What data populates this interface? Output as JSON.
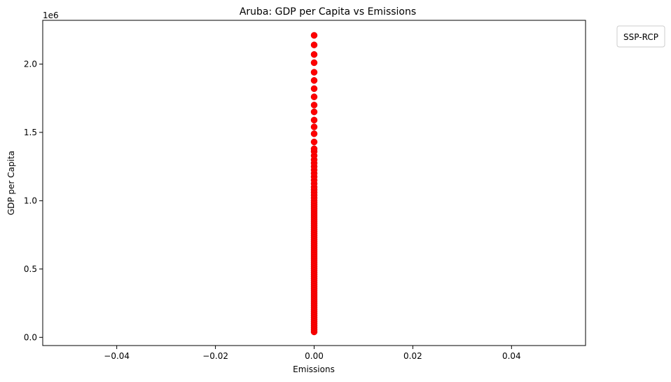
{
  "chart_data": {
    "type": "scatter",
    "title": "Aruba: GDP per Capita vs Emissions",
    "xlabel": "Emissions",
    "ylabel": "GDP per Capita",
    "y_offset_label": "1e6",
    "xlim": [
      -0.055,
      0.055
    ],
    "ylim": [
      -60000,
      2320000
    ],
    "x_ticks": [
      -0.04,
      -0.02,
      0.0,
      0.02,
      0.04
    ],
    "x_tick_labels": [
      "−0.04",
      "−0.02",
      "0.00",
      "0.02",
      "0.04"
    ],
    "y_ticks": [
      0,
      500000,
      1000000,
      1500000,
      2000000
    ],
    "y_tick_labels": [
      "0.0",
      "0.5",
      "1.0",
      "1.5",
      "2.0"
    ],
    "grid": false,
    "legend": {
      "title": "SSP-RCP",
      "placement": "outside-top-right",
      "entries": []
    },
    "series": [
      {
        "color": "#ff0000",
        "points": [
          [
            0,
            40000
          ],
          [
            0,
            55000
          ],
          [
            0,
            70000
          ],
          [
            0,
            85000
          ],
          [
            0,
            100000
          ],
          [
            0,
            115000
          ],
          [
            0,
            130000
          ],
          [
            0,
            145000
          ],
          [
            0,
            160000
          ],
          [
            0,
            175000
          ],
          [
            0,
            190000
          ],
          [
            0,
            205000
          ],
          [
            0,
            220000
          ],
          [
            0,
            235000
          ],
          [
            0,
            250000
          ],
          [
            0,
            265000
          ],
          [
            0,
            280000
          ],
          [
            0,
            295000
          ],
          [
            0,
            310000
          ],
          [
            0,
            325000
          ],
          [
            0,
            340000
          ],
          [
            0,
            355000
          ],
          [
            0,
            370000
          ],
          [
            0,
            385000
          ],
          [
            0,
            400000
          ],
          [
            0,
            415000
          ],
          [
            0,
            430000
          ],
          [
            0,
            445000
          ],
          [
            0,
            460000
          ],
          [
            0,
            475000
          ],
          [
            0,
            490000
          ],
          [
            0,
            505000
          ],
          [
            0,
            520000
          ],
          [
            0,
            535000
          ],
          [
            0,
            550000
          ],
          [
            0,
            565000
          ],
          [
            0,
            580000
          ],
          [
            0,
            595000
          ],
          [
            0,
            610000
          ],
          [
            0,
            625000
          ],
          [
            0,
            640000
          ],
          [
            0,
            655000
          ],
          [
            0,
            670000
          ],
          [
            0,
            685000
          ],
          [
            0,
            700000
          ],
          [
            0,
            715000
          ],
          [
            0,
            730000
          ],
          [
            0,
            745000
          ],
          [
            0,
            760000
          ],
          [
            0,
            775000
          ],
          [
            0,
            790000
          ],
          [
            0,
            805000
          ],
          [
            0,
            820000
          ],
          [
            0,
            835000
          ],
          [
            0,
            850000
          ],
          [
            0,
            865000
          ],
          [
            0,
            880000
          ],
          [
            0,
            895000
          ],
          [
            0,
            910000
          ],
          [
            0,
            925000
          ],
          [
            0,
            940000
          ],
          [
            0,
            955000
          ],
          [
            0,
            970000
          ],
          [
            0,
            985000
          ],
          [
            0,
            1000000
          ],
          [
            0,
            1020000
          ],
          [
            0,
            1040000
          ],
          [
            0,
            1060000
          ],
          [
            0,
            1080000
          ],
          [
            0,
            1100000
          ],
          [
            0,
            1125000
          ],
          [
            0,
            1150000
          ],
          [
            0,
            1175000
          ],
          [
            0,
            1200000
          ],
          [
            0,
            1225000
          ],
          [
            0,
            1250000
          ],
          [
            0,
            1275000
          ],
          [
            0,
            1300000
          ],
          [
            0,
            1330000
          ],
          [
            0,
            1360000
          ],
          [
            0,
            1380000
          ],
          [
            0,
            1430000
          ],
          [
            0,
            1490000
          ],
          [
            0,
            1540000
          ],
          [
            0,
            1590000
          ],
          [
            0,
            1650000
          ],
          [
            0,
            1700000
          ],
          [
            0,
            1760000
          ],
          [
            0,
            1820000
          ],
          [
            0,
            1880000
          ],
          [
            0,
            1940000
          ],
          [
            0,
            2010000
          ],
          [
            0,
            2070000
          ],
          [
            0,
            2140000
          ],
          [
            0,
            2210000
          ]
        ]
      }
    ]
  }
}
